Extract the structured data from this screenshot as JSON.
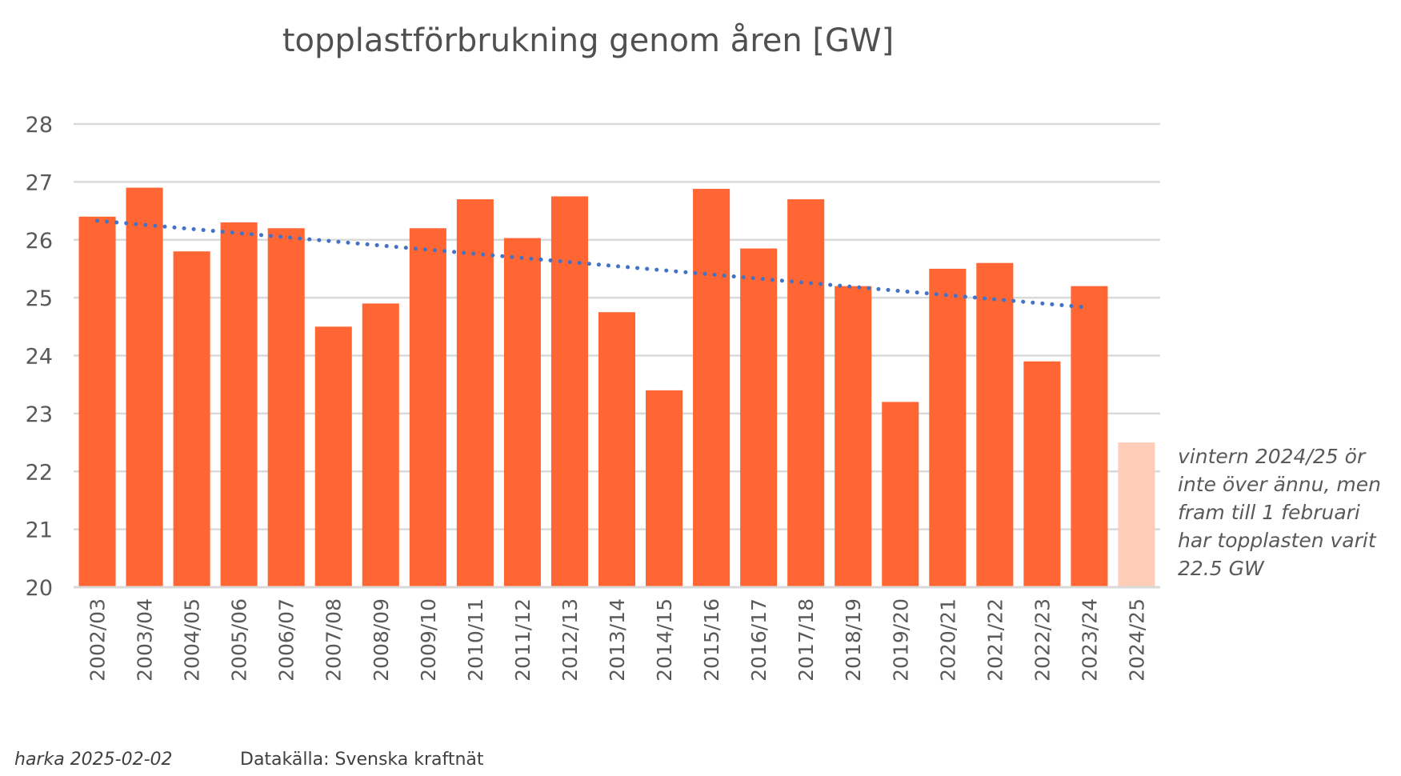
{
  "chart_data": {
    "type": "bar",
    "title": "topplastförbrukning genom åren  [GW]",
    "xlabel": "",
    "ylabel": "",
    "ylim": [
      20,
      28
    ],
    "yticks": [
      20,
      21,
      22,
      23,
      24,
      25,
      26,
      27,
      28
    ],
    "grid": true,
    "categories": [
      "2002/03",
      "2003/04",
      "2004/05",
      "2005/06",
      "2006/07",
      "2007/08",
      "2008/09",
      "2009/10",
      "2010/11",
      "2011/12",
      "2012/13",
      "2013/14",
      "2014/15",
      "2015/16",
      "2016/17",
      "2017/18",
      "2018/19",
      "2019/20",
      "2020/21",
      "2021/22",
      "2022/23",
      "2023/24",
      "2024/25"
    ],
    "values": [
      26.4,
      26.9,
      25.8,
      26.3,
      26.2,
      24.5,
      24.9,
      26.2,
      26.7,
      26.03,
      26.75,
      24.75,
      23.4,
      26.88,
      25.85,
      26.7,
      25.2,
      23.2,
      25.5,
      25.6,
      23.9,
      25.2,
      22.5
    ],
    "bar_color": "#FF6633",
    "partial_bar_color": "#FFCDB8",
    "partial_category": "2024/25",
    "trendline": {
      "type": "linear",
      "style": "dotted",
      "color": "#4472C4",
      "start": 26.33,
      "end": 24.83,
      "range": [
        "2002/03",
        "2023/24"
      ]
    },
    "annotation": "vintern 2024/25 ör\ninte över ännu, men\nfram till 1 februari\nhar topplasten varit\n22.5 GW"
  },
  "footer": {
    "author": "harka 2025-02-02",
    "source": "Datakälla: Svenska kraftnät"
  }
}
